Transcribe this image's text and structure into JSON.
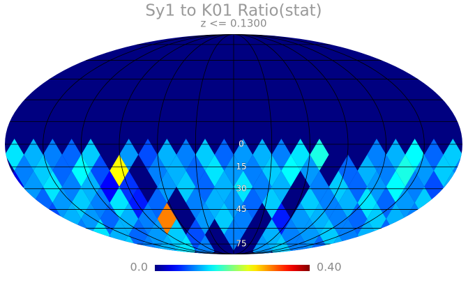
{
  "chart_data": {
    "type": "map",
    "title": "Sy1 to K01 Ratio(stat)",
    "subtitle": "z <= 0.1300",
    "clim": [
      0,
      0.4
    ],
    "cticks": [
      {
        "value": 0,
        "label": "0.0"
      },
      {
        "value": 0.4,
        "label": "0.40"
      }
    ],
    "lat_labels": [
      0,
      15,
      30,
      45,
      75
    ],
    "cells": [
      [
        0.14,
        0.12,
        0.1,
        0.09,
        0.13,
        0,
        0.11,
        0.08,
        0.12,
        0.1,
        0.13,
        0.09,
        0.11,
        0.12,
        0.1,
        0.14,
        0.16,
        0,
        0,
        0.1,
        0.12,
        0.15,
        0.09,
        0.13
      ],
      [
        0.1,
        0.13,
        0.09,
        0.15,
        0.08,
        0.25,
        0,
        0.1,
        0.12,
        0.09,
        0.14,
        0.11,
        0.1,
        0.13,
        0.15,
        0.11,
        0,
        0.09,
        0.12,
        0.1,
        0.16,
        0.11,
        0.13,
        0.1
      ],
      [
        0.04,
        0.11,
        0.14,
        0.1,
        0.12,
        0.05,
        0.07,
        0,
        0.11,
        0.13,
        0.09,
        0.12,
        0.14,
        0.1,
        0.12,
        0,
        0.1,
        0.13,
        0.09,
        0.11,
        0.15,
        0.1,
        0.08,
        0.12
      ],
      [
        0.12,
        0.09,
        0.11,
        0.13,
        0.1,
        0.14,
        0.06,
        0.09,
        0,
        0.1,
        0.12,
        0.11,
        0.09,
        0.13,
        0,
        0.13,
        0.1,
        0.12,
        0.14,
        0.09,
        0.11,
        0.13,
        0.1,
        0.08
      ],
      [
        0.1,
        0.13,
        0.08,
        0.12,
        0.11,
        0.09,
        0.12,
        0.1,
        0.3,
        0,
        0.11,
        0.13,
        0.1,
        0,
        0.06,
        0.11,
        0.12,
        0.1,
        0.09,
        0.13,
        0.12,
        0.1,
        0.14,
        0.11
      ],
      [
        0.09,
        0.12,
        0.11,
        0.1,
        0.14,
        0.12,
        0.09,
        0.11,
        0.13,
        0.08,
        0,
        0.1,
        0,
        0.12,
        0.1,
        0.11,
        0.13,
        0.1,
        0.12,
        0.09,
        0.11,
        0.07,
        0.12,
        0.1
      ],
      [
        0.11,
        0.1,
        0.13,
        0.12,
        0.09,
        0.11,
        0.13,
        0.1,
        0.12,
        0.14,
        0.1,
        0,
        0,
        0.11,
        0.13,
        0.1,
        0.09,
        0.12,
        0.1,
        0.11,
        0.13,
        0.1,
        0.08,
        0.12
      ]
    ]
  }
}
